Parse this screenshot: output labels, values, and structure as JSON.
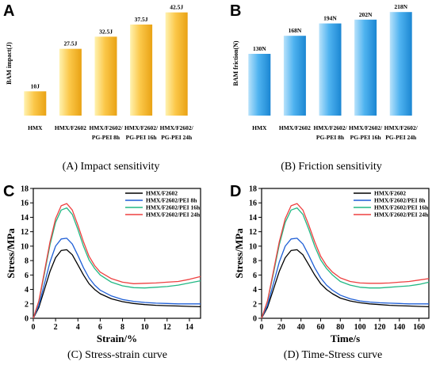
{
  "panels": {
    "A": {
      "letter": "A",
      "caption": "(A) Impact sensitivity"
    },
    "B": {
      "letter": "B",
      "caption": "(B) Friction sensitivity"
    },
    "C": {
      "letter": "C",
      "caption": "(C) Stress-strain curve"
    },
    "D": {
      "letter": "D",
      "caption": "(D) Time-Stress curve"
    }
  },
  "chart_data": [
    {
      "type": "bar",
      "panel": "A",
      "ylabel": "BAM impact(J)",
      "categories": [
        [
          "HMX"
        ],
        [
          "HMX/F2602"
        ],
        [
          "HMX/F2602/",
          "PG-PEI 8h"
        ],
        [
          "HMX/F2602/",
          "PG-PEI 16h"
        ],
        [
          "HMX/F2602/",
          "PG-PEI 24h"
        ]
      ],
      "values": [
        10,
        27.5,
        32.5,
        37.5,
        42.5
      ],
      "value_labels": [
        "10J",
        "27.5J",
        "32.5J",
        "37.5J",
        "42.5J"
      ],
      "ylim": [
        0,
        45
      ],
      "colors": {
        "fill_light": "#fff2b0",
        "fill_mid": "#fbc84a",
        "fill_dark": "#e9a214"
      }
    },
    {
      "type": "bar",
      "panel": "B",
      "ylabel": "BAM friction(N)",
      "categories": [
        [
          "HMX"
        ],
        [
          "HMX/F2602"
        ],
        [
          "HMX/F2602/",
          "PG-PEI 8h"
        ],
        [
          "HMX/F2602/",
          "PG-PEI 16h"
        ],
        [
          "HMX/F2602/",
          "PG-PEI 24h"
        ]
      ],
      "values": [
        130,
        168,
        194,
        202,
        218
      ],
      "value_labels": [
        "130N",
        "168N",
        "194N",
        "202N",
        "218N"
      ],
      "ylim": [
        0,
        230
      ],
      "colors": {
        "fill_light": "#b8e2fb",
        "fill_mid": "#4fb3f0",
        "fill_dark": "#1b86d2"
      }
    },
    {
      "type": "line",
      "panel": "C",
      "xlabel": "Strain/%",
      "ylabel": "Stress/MPa",
      "xlim": [
        0,
        15
      ],
      "ylim": [
        0,
        18
      ],
      "xticks": [
        0,
        2,
        4,
        6,
        8,
        10,
        12,
        14
      ],
      "yticks": [
        0,
        2,
        4,
        6,
        8,
        10,
        12,
        14,
        16,
        18
      ],
      "legend_position": "top-right",
      "series": [
        {
          "name": "HMX/F2602",
          "color": "#000000",
          "x": [
            0,
            0.5,
            1,
            1.5,
            2,
            2.5,
            3,
            3.5,
            4,
            4.5,
            5,
            5.5,
            6,
            7,
            8,
            9,
            10,
            11,
            12,
            13,
            14,
            15
          ],
          "y": [
            0,
            1.5,
            4,
            6.5,
            8.4,
            9.4,
            9.5,
            8.8,
            7.4,
            6.0,
            4.8,
            4.0,
            3.4,
            2.7,
            2.3,
            2.05,
            1.9,
            1.8,
            1.75,
            1.7,
            1.65,
            1.6
          ]
        },
        {
          "name": "HMX/F2602/PEI 8h",
          "color": "#1f5fd6",
          "x": [
            0,
            0.5,
            1,
            1.5,
            2,
            2.5,
            3,
            3.5,
            4,
            4.5,
            5,
            5.5,
            6,
            7,
            8,
            9,
            10,
            11,
            12,
            13,
            14,
            15
          ],
          "y": [
            0,
            1.8,
            4.8,
            7.8,
            10.0,
            11.0,
            11.1,
            10.3,
            8.7,
            7.0,
            5.6,
            4.6,
            3.9,
            3.1,
            2.6,
            2.35,
            2.2,
            2.1,
            2.05,
            2.0,
            2.0,
            2.0
          ]
        },
        {
          "name": "HMX/F2602/PEI 16h",
          "color": "#22b884",
          "x": [
            0,
            0.5,
            1,
            1.5,
            2,
            2.5,
            3,
            3.5,
            4,
            4.5,
            5,
            5.5,
            6,
            7,
            8,
            9,
            10,
            11,
            12,
            13,
            14,
            15
          ],
          "y": [
            0,
            2.3,
            6.2,
            10.2,
            13.3,
            15.0,
            15.3,
            14.4,
            12.3,
            10.0,
            8.1,
            6.9,
            6.0,
            5.0,
            4.5,
            4.25,
            4.2,
            4.3,
            4.4,
            4.6,
            4.9,
            5.2
          ]
        },
        {
          "name": "HMX/F2602/PEI 24h",
          "color": "#ee4040",
          "x": [
            0,
            0.5,
            1,
            1.5,
            2,
            2.5,
            3,
            3.5,
            4,
            4.5,
            5,
            5.5,
            6,
            7,
            8,
            9,
            10,
            11,
            12,
            13,
            14,
            15
          ],
          "y": [
            0,
            2.4,
            6.5,
            10.6,
            13.8,
            15.6,
            15.9,
            15.0,
            12.9,
            10.6,
            8.6,
            7.3,
            6.4,
            5.5,
            5.0,
            4.8,
            4.85,
            4.9,
            5.0,
            5.1,
            5.4,
            5.8
          ]
        }
      ]
    },
    {
      "type": "line",
      "panel": "D",
      "xlabel": "Time/s",
      "ylabel": "Stress/MPa",
      "xlim": [
        0,
        170
      ],
      "ylim": [
        0,
        18
      ],
      "xticks": [
        0,
        20,
        40,
        60,
        80,
        100,
        120,
        140,
        160
      ],
      "yticks": [
        0,
        2,
        4,
        6,
        8,
        10,
        12,
        14,
        16,
        18
      ],
      "legend_position": "top-right",
      "series": [
        {
          "name": "HMX/F2602",
          "color": "#000000",
          "x": [
            0,
            6,
            12,
            18,
            24,
            30,
            36,
            42,
            48,
            54,
            60,
            66,
            72,
            80,
            90,
            100,
            110,
            120,
            130,
            140,
            150,
            160,
            170
          ],
          "y": [
            0,
            1.5,
            4,
            6.5,
            8.4,
            9.4,
            9.5,
            8.8,
            7.4,
            6.0,
            4.8,
            4.0,
            3.4,
            2.8,
            2.4,
            2.15,
            2.0,
            1.9,
            1.8,
            1.75,
            1.7,
            1.65,
            1.6
          ]
        },
        {
          "name": "HMX/F2602/PEI 8h",
          "color": "#1f5fd6",
          "x": [
            0,
            6,
            12,
            18,
            24,
            30,
            36,
            42,
            48,
            54,
            60,
            66,
            72,
            80,
            90,
            100,
            110,
            120,
            130,
            140,
            150,
            160,
            170
          ],
          "y": [
            0,
            1.8,
            4.8,
            7.8,
            10.0,
            11.0,
            11.1,
            10.3,
            8.7,
            7.0,
            5.6,
            4.6,
            3.9,
            3.2,
            2.7,
            2.4,
            2.25,
            2.15,
            2.1,
            2.05,
            2.0,
            2.0,
            2.0
          ]
        },
        {
          "name": "HMX/F2602/PEI 16h",
          "color": "#22b884",
          "x": [
            0,
            6,
            12,
            18,
            24,
            30,
            36,
            42,
            48,
            54,
            60,
            66,
            72,
            80,
            90,
            100,
            110,
            120,
            130,
            140,
            150,
            160,
            170
          ],
          "y": [
            0,
            2.3,
            6.2,
            10.2,
            13.3,
            15.0,
            15.3,
            14.4,
            12.3,
            10.0,
            8.1,
            6.9,
            6.0,
            5.1,
            4.6,
            4.3,
            4.2,
            4.2,
            4.3,
            4.4,
            4.5,
            4.7,
            5.0
          ]
        },
        {
          "name": "HMX/F2602/PEI 24h",
          "color": "#ee4040",
          "x": [
            0,
            6,
            12,
            18,
            24,
            30,
            36,
            42,
            48,
            54,
            60,
            66,
            72,
            80,
            90,
            100,
            110,
            120,
            130,
            140,
            150,
            160,
            170
          ],
          "y": [
            0,
            2.4,
            6.5,
            10.6,
            13.8,
            15.6,
            15.9,
            15.0,
            12.9,
            10.6,
            8.6,
            7.3,
            6.4,
            5.6,
            5.1,
            4.9,
            4.85,
            4.85,
            4.9,
            5.0,
            5.1,
            5.3,
            5.5
          ]
        }
      ]
    }
  ]
}
